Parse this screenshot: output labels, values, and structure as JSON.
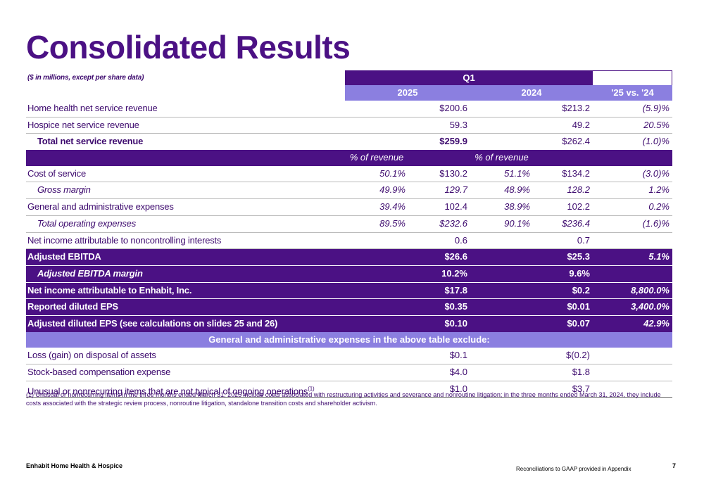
{
  "title": "Consolidated Results",
  "table": {
    "note": "($ in millions, except per share data)",
    "period": "Q1",
    "columns": [
      "2025",
      "2024",
      "'25 vs. '24"
    ],
    "rows": [
      {
        "label": "Home health net service revenue",
        "values": [
          "$200.6",
          "$213.2",
          "(5.9)%"
        ]
      },
      {
        "label": "Hospice net service revenue",
        "values": [
          "59.3",
          "49.2",
          "20.5%"
        ]
      },
      {
        "label": "Total net service revenue",
        "values": [
          "$259.9",
          "$262.4",
          "(1.0)%"
        ]
      },
      {
        "values": [
          "% of revenue",
          "% of revenue"
        ]
      },
      {
        "label": "Cost of service",
        "values": [
          "50.1%",
          "$130.2",
          "51.1%",
          "$134.2",
          "(3.0)%"
        ]
      },
      {
        "label": "Gross margin",
        "values": [
          "49.9%",
          "129.7",
          "48.9%",
          "128.2",
          "1.2%"
        ]
      },
      {
        "label": "General and administrative expenses",
        "values": [
          "39.4%",
          "102.4",
          "38.9%",
          "102.2",
          "0.2%"
        ]
      },
      {
        "label": "Total operating expenses",
        "values": [
          "89.5%",
          "$232.6",
          "90.1%",
          "$236.4",
          "(1.6)%"
        ]
      },
      {
        "label": "Net income attributable to noncontrolling interests",
        "values": [
          "0.6",
          "0.7"
        ]
      },
      {
        "label": "Adjusted EBITDA",
        "values": [
          "$26.6",
          "$25.3",
          "5.1%"
        ]
      },
      {
        "label": "Adjusted EBITDA margin",
        "values": [
          "10.2%",
          "9.6%"
        ]
      },
      {
        "label": "Net income attributable to Enhabit, Inc.",
        "values": [
          "$17.8",
          "$0.2",
          "8,800.0%"
        ]
      },
      {
        "label": "Reported diluted EPS",
        "values": [
          "$0.35",
          "$0.01",
          "3,400.0%"
        ]
      },
      {
        "label": "Adjusted diluted EPS (see calculations on slides 25 and 26)",
        "values": [
          "$0.10",
          "$0.07",
          "42.9%"
        ]
      },
      {
        "label": "General and administrative expenses in the above table exclude:"
      },
      {
        "label": "Loss (gain) on disposal of assets",
        "values": [
          "$0.1",
          "$(0.2)"
        ]
      },
      {
        "label": "Stock-based compensation expense",
        "values": [
          "$4.0",
          "$1.8"
        ]
      },
      {
        "label": "Unusual or nonrecurring items that are not typical of ongoing operations",
        "superscript": "(1)",
        "values": [
          "$1.0",
          "$3.7"
        ]
      }
    ]
  },
  "footnote": "(1) Unusual or nonrecurring items in the three months ended March 31, 2025 include costs associated with restructuring activities and severance and nonroutine litigation; in the three months ended March 31, 2024, they include costs associated with the strategic review process, nonroutine litigation, standalone transition costs and shareholder activism.",
  "footer": {
    "company": "Enhabit Home Health & Hospice",
    "reconciliation": "Reconciliations to GAAP provided in Appendix",
    "page": "7"
  }
}
